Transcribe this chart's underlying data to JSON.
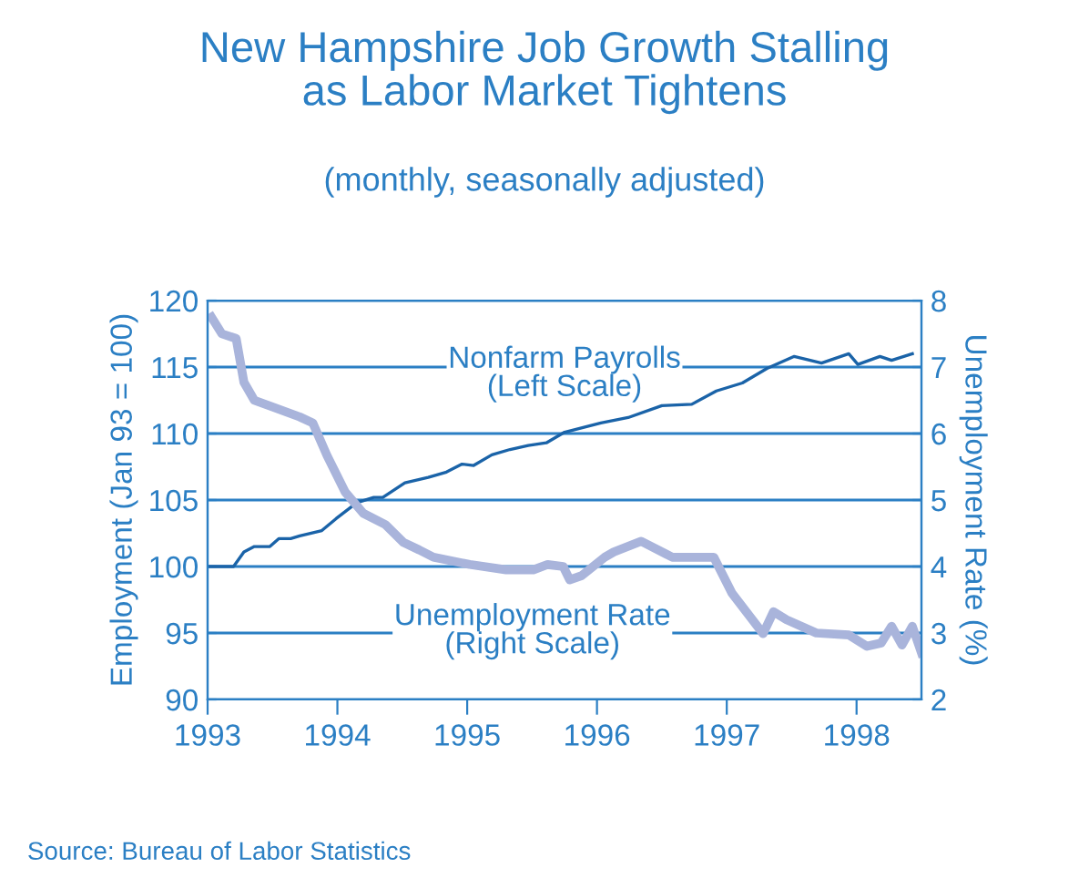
{
  "chart_data": {
    "type": "line",
    "title": "New Hampshire Job Growth Stalling\nas Labor Market Tightens",
    "subtitle": "(monthly, seasonally adjusted)",
    "ylabel": "Employment (Jan 93 = 100)",
    "y2label": "Unemployment Rate (%)",
    "xlim": [
      1993,
      1998.5
    ],
    "xticks": [
      {
        "value": 1993,
        "label": "1993"
      },
      {
        "value": 1994,
        "label": "1994"
      },
      {
        "value": 1995,
        "label": "1995"
      },
      {
        "value": 1996,
        "label": "1996"
      },
      {
        "value": 1997,
        "label": "1997"
      },
      {
        "value": 1998,
        "label": "1998"
      }
    ],
    "ylim": [
      90,
      120
    ],
    "yticks": [
      90,
      95,
      100,
      105,
      110,
      115,
      120
    ],
    "y2lim": [
      2,
      8
    ],
    "y2ticks": [
      2,
      3,
      4,
      5,
      6,
      7,
      8
    ],
    "grid": "y",
    "legend": false,
    "series": [
      {
        "name": "Nonfarm Payrolls\n(Left Scale)",
        "color": "#1a63a8",
        "x": [
          1993.0,
          1993.2,
          1993.28,
          1993.36,
          1993.48,
          1993.55,
          1993.64,
          1993.71,
          1993.88,
          1993.99,
          1994.15,
          1994.28,
          1994.35,
          1994.52,
          1994.7,
          1994.84,
          1994.96,
          1995.05,
          1995.19,
          1995.33,
          1995.47,
          1995.61,
          1995.75,
          1996.03,
          1996.24,
          1996.5,
          1996.73,
          1996.92,
          1997.12,
          1997.31,
          1997.52,
          1997.73,
          1997.94,
          1998.01,
          1998.18,
          1998.27,
          1998.43
        ],
        "values": [
          100,
          100,
          101.1,
          101.5,
          101.5,
          102.1,
          102.1,
          102.3,
          102.7,
          103.6,
          104.8,
          105.2,
          105.2,
          106.3,
          106.7,
          107.1,
          107.7,
          107.6,
          108.4,
          108.8,
          109.1,
          109.3,
          110.1,
          110.8,
          111.2,
          112.1,
          112.2,
          113.2,
          113.8,
          114.9,
          115.8,
          115.3,
          116.0,
          115.2,
          115.8,
          115.5,
          116.0
        ],
        "axis": "y"
      },
      {
        "name": "Unemployment Rate\n(Right Scale)",
        "color": "#a9b4db",
        "x": [
          1993.03,
          1993.11,
          1993.22,
          1993.28,
          1993.36,
          1993.5,
          1993.71,
          1993.81,
          1993.92,
          1994.06,
          1994.2,
          1994.37,
          1994.51,
          1994.63,
          1994.74,
          1995.02,
          1995.3,
          1995.51,
          1995.62,
          1995.74,
          1995.79,
          1995.88,
          1996.06,
          1996.13,
          1996.34,
          1996.53,
          1996.58,
          1996.9,
          1997.04,
          1997.28,
          1997.36,
          1997.46,
          1997.69,
          1997.94,
          1998.08,
          1998.19,
          1998.27,
          1998.35,
          1998.43,
          1998.5
        ],
        "values": [
          7.75,
          7.5,
          7.43,
          6.77,
          6.5,
          6.4,
          6.25,
          6.16,
          5.67,
          5.12,
          4.8,
          4.63,
          4.36,
          4.25,
          4.14,
          4.03,
          3.95,
          3.95,
          4.03,
          4.0,
          3.8,
          3.86,
          4.14,
          4.22,
          4.38,
          4.19,
          4.14,
          4.14,
          3.6,
          2.99,
          3.32,
          3.2,
          3.0,
          2.97,
          2.8,
          2.85,
          3.1,
          2.82,
          3.1,
          2.7
        ],
        "axis": "y2"
      }
    ],
    "annotations": [
      "Source: Bureau of Labor Statistics"
    ]
  }
}
